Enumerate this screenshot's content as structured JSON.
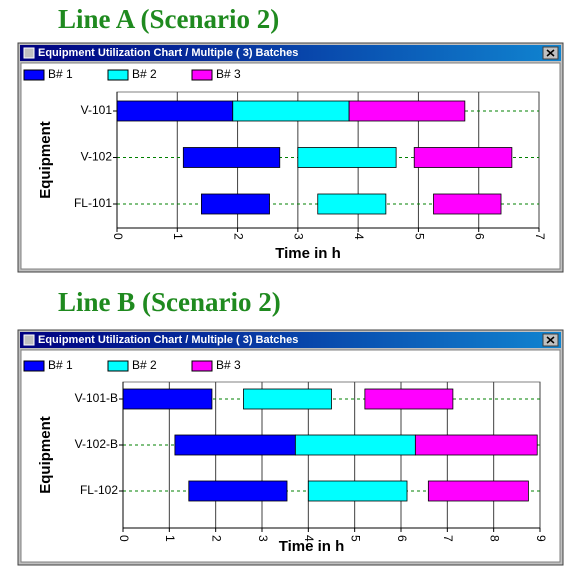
{
  "chart_data": [
    {
      "type": "gantt",
      "heading": "Line A (Scenario 2)",
      "window_title": "Equipment Utilization Chart / Multiple ( 3) Batches",
      "xlabel": "Time in h",
      "ylabel": "Equipment",
      "categories": [
        "V-101",
        "V-102",
        "FL-101"
      ],
      "series": [
        {
          "name": "B# 1",
          "color": "#0000ff",
          "start": [
            0,
            1.1,
            1.4
          ],
          "end": [
            1.92,
            2.7,
            2.53
          ]
        },
        {
          "name": "B# 2",
          "color": "#00ffff",
          "start": [
            1.92,
            3.0,
            3.33
          ],
          "end": [
            3.85,
            4.63,
            4.46
          ]
        },
        {
          "name": "B# 3",
          "color": "#ff00ff",
          "start": [
            3.85,
            4.93,
            5.25
          ],
          "end": [
            5.77,
            6.55,
            6.37
          ]
        }
      ],
      "xlim": [
        0,
        7
      ],
      "xticks": [
        0,
        1,
        2,
        3,
        4,
        5,
        6,
        7
      ],
      "grid": true
    },
    {
      "type": "gantt",
      "heading": "Line B (Scenario 2)",
      "window_title": "Equipment Utilization Chart / Multiple ( 3) Batches",
      "xlabel": "Time in h",
      "ylabel": "Equipment",
      "categories": [
        "V-101-B",
        "V-102-B",
        "FL-102"
      ],
      "series": [
        {
          "name": "B# 1",
          "color": "#0000ff",
          "start": [
            0,
            1.12,
            1.42
          ],
          "end": [
            1.92,
            3.72,
            3.54
          ]
        },
        {
          "name": "B# 2",
          "color": "#00ffff",
          "start": [
            2.6,
            3.72,
            4.0
          ],
          "end": [
            4.5,
            6.31,
            6.13
          ]
        },
        {
          "name": "B# 3",
          "color": "#ff00ff",
          "start": [
            5.22,
            6.31,
            6.59
          ],
          "end": [
            7.12,
            8.94,
            8.75
          ]
        }
      ],
      "xlim": [
        0,
        9
      ],
      "xticks": [
        0,
        1,
        2,
        3,
        4,
        5,
        6,
        7,
        8,
        9
      ],
      "grid": true
    }
  ]
}
